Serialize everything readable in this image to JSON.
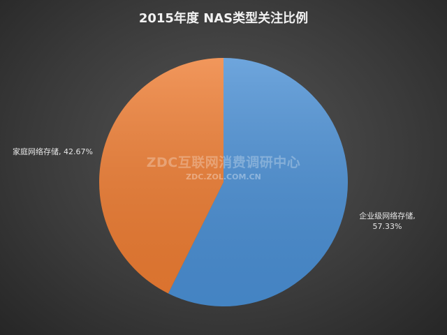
{
  "chart_data": {
    "type": "pie",
    "title": "2015年度 NAS类型关注比例",
    "values": [
      57.33,
      42.67
    ],
    "value_labels": [
      "企业级网络存储, 57.33%",
      "家庭网络存储, 42.67%"
    ],
    "colors": [
      "#4a8fd4",
      "#ee7d33"
    ],
    "watermark": "ZDC互联网消费调研中心",
    "watermark_url": "ZDC.ZOL.COM.CN"
  }
}
